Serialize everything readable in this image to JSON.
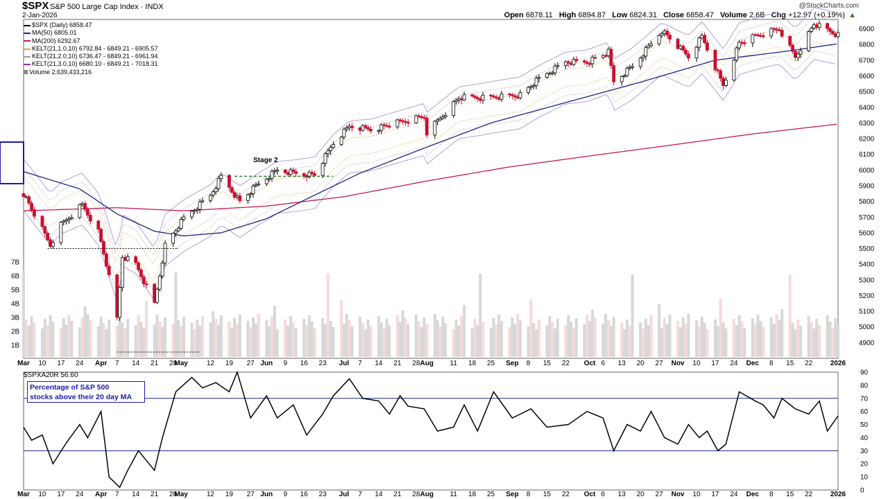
{
  "header": {
    "symbol": "$SPX",
    "name": "S&P 500 Large Cap Index",
    "exchange": "INDX",
    "date": "2-Jan-2026",
    "brand": "@StockCharts.com",
    "open_label": "Open",
    "open": "6878.11",
    "high_label": "High",
    "high": "6894.87",
    "low_label": "Low",
    "low": "6824.31",
    "close_label": "Close",
    "close": "6858.47",
    "volume_label": "Volume",
    "volume": "2.6B",
    "chg_label": "Chg",
    "chg": "+12.97 (+0.19%)"
  },
  "legend": [
    {
      "text": "$SPX (Daily) 6858.47",
      "color": "#000000"
    },
    {
      "text": "MA(50) 6805.01",
      "color": "#1a237e"
    },
    {
      "text": "MA(200) 6292.67",
      "color": "#c2185b"
    },
    {
      "text": "KELT(21,1.0,10) 6792.84 - 6849.21 - 6905.57",
      "color": "#e0a030"
    },
    {
      "text": "KELT(21,2.0,10) 6736.47 - 6849.21 - 6961.94",
      "color": "#999999"
    },
    {
      "text": "KELT(21,3.0,10) 6680.10 - 6849.21 - 7018.31",
      "color": "#9c27b0"
    },
    {
      "text": "Volume 2,639,433,216",
      "color": "#888888"
    }
  ],
  "annotation": "Stage 2",
  "breadth_panel": {
    "title": "$SPXA20R 56.60",
    "label_line1": "Percentage of S&P 500",
    "label_line2": "stocks above their 20 day MA"
  },
  "colors": {
    "up": "#000000",
    "down": "#c8102e",
    "ma50": "#1a237e",
    "ma200": "#c2185b",
    "kelt3": "#b39ddb",
    "kelt2": "#bdbdbd",
    "kelt1": "#e6c27a",
    "vol_up": "#d8d8d8",
    "vol_down": "#f6dada",
    "breadth": "#000000",
    "ref": "#1a237e"
  },
  "chart_data": [
    {
      "type": "candlestick",
      "title": "$SPX (Daily)",
      "ylim": [
        4800,
        6960
      ],
      "y_ticks": [
        4900,
        5000,
        5100,
        5200,
        5300,
        5400,
        5500,
        5600,
        5700,
        5800,
        5900,
        6000,
        6100,
        6200,
        6300,
        6400,
        6500,
        6600,
        6700,
        6800,
        6900
      ],
      "volume_ticks": [
        "1B",
        "2B",
        "3B",
        "4B",
        "5B",
        "6B",
        "7B"
      ],
      "x_ticks": [
        "Mar",
        "10",
        "17",
        "24",
        "Apr",
        "7",
        "14",
        "21",
        "28",
        "May",
        "12",
        "19",
        "27",
        "Jun",
        "9",
        "16",
        "23",
        "Jul",
        "7",
        "14",
        "21",
        "28",
        "Aug",
        "11",
        "18",
        "25",
        "Sep",
        "8",
        "15",
        "22",
        "Oct",
        "6",
        "13",
        "20",
        "27",
        "Nov",
        "10",
        "17",
        "24",
        "Dec",
        "8",
        "15",
        "22",
        "2026"
      ],
      "close_path": [
        [
          "2025-03-03",
          5850
        ],
        [
          "2025-03-10",
          5620
        ],
        [
          "2025-03-13",
          5520
        ],
        [
          "2025-03-17",
          5650
        ],
        [
          "2025-03-25",
          5780
        ],
        [
          "2025-03-31",
          5610
        ],
        [
          "2025-04-03",
          5400
        ],
        [
          "2025-04-07",
          5050
        ],
        [
          "2025-04-09",
          5450
        ],
        [
          "2025-04-14",
          5400
        ],
        [
          "2025-04-21",
          5150
        ],
        [
          "2025-04-25",
          5520
        ],
        [
          "2025-05-02",
          5690
        ],
        [
          "2025-05-12",
          5840
        ],
        [
          "2025-05-16",
          5960
        ],
        [
          "2025-05-23",
          5800
        ],
        [
          "2025-05-30",
          5910
        ],
        [
          "2025-06-06",
          6000
        ],
        [
          "2025-06-13",
          5980
        ],
        [
          "2025-06-20",
          5970
        ],
        [
          "2025-06-27",
          6170
        ],
        [
          "2025-07-03",
          6280
        ],
        [
          "2025-07-11",
          6260
        ],
        [
          "2025-07-21",
          6300
        ],
        [
          "2025-07-31",
          6340
        ],
        [
          "2025-08-01",
          6240
        ],
        [
          "2025-08-13",
          6460
        ],
        [
          "2025-08-22",
          6460
        ],
        [
          "2025-09-05",
          6480
        ],
        [
          "2025-09-12",
          6580
        ],
        [
          "2025-09-22",
          6690
        ],
        [
          "2025-09-30",
          6690
        ],
        [
          "2025-10-08",
          6750
        ],
        [
          "2025-10-10",
          6560
        ],
        [
          "2025-10-17",
          6660
        ],
        [
          "2025-10-28",
          6890
        ],
        [
          "2025-11-04",
          6770
        ],
        [
          "2025-11-07",
          6720
        ],
        [
          "2025-11-12",
          6850
        ],
        [
          "2025-11-20",
          6540
        ],
        [
          "2025-11-26",
          6810
        ],
        [
          "2025-12-05",
          6870
        ],
        [
          "2025-12-11",
          6900
        ],
        [
          "2025-12-17",
          6720
        ],
        [
          "2025-12-24",
          6930
        ],
        [
          "2026-01-02",
          6858
        ]
      ],
      "ma50_path": [
        [
          "2025-03-03",
          5990
        ],
        [
          "2025-03-24",
          5880
        ],
        [
          "2025-04-07",
          5720
        ],
        [
          "2025-04-21",
          5610
        ],
        [
          "2025-05-02",
          5580
        ],
        [
          "2025-05-16",
          5600
        ],
        [
          "2025-06-02",
          5690
        ],
        [
          "2025-06-20",
          5840
        ],
        [
          "2025-07-07",
          5980
        ],
        [
          "2025-07-28",
          6120
        ],
        [
          "2025-08-25",
          6300
        ],
        [
          "2025-09-22",
          6430
        ],
        [
          "2025-10-20",
          6560
        ],
        [
          "2025-11-17",
          6700
        ],
        [
          "2025-12-15",
          6760
        ],
        [
          "2026-01-02",
          6805
        ]
      ],
      "ma200_path": [
        [
          "2025-03-03",
          5740
        ],
        [
          "2025-04-07",
          5760
        ],
        [
          "2025-05-02",
          5740
        ],
        [
          "2025-06-02",
          5770
        ],
        [
          "2025-07-01",
          5830
        ],
        [
          "2025-08-01",
          5930
        ],
        [
          "2025-09-01",
          6020
        ],
        [
          "2025-10-01",
          6090
        ],
        [
          "2025-11-01",
          6160
        ],
        [
          "2025-12-01",
          6230
        ],
        [
          "2026-01-02",
          6293
        ]
      ],
      "last_bar": {
        "open": 6878.11,
        "high": 6894.87,
        "low": 6824.31,
        "close": 6858.47,
        "volume": 2639433216
      }
    },
    {
      "type": "line",
      "title": "$SPXA20R",
      "ylim": [
        0,
        90
      ],
      "y_ticks": [
        0,
        10,
        20,
        30,
        40,
        50,
        60,
        70,
        80,
        90
      ],
      "reference_lines": [
        30,
        70
      ],
      "series": [
        {
          "name": "$SPXA20R",
          "points": [
            [
              "2025-03-03",
              48
            ],
            [
              "2025-03-06",
              38
            ],
            [
              "2025-03-10",
              42
            ],
            [
              "2025-03-14",
              20
            ],
            [
              "2025-03-19",
              36
            ],
            [
              "2025-03-24",
              50
            ],
            [
              "2025-03-27",
              40
            ],
            [
              "2025-04-01",
              60
            ],
            [
              "2025-04-04",
              10
            ],
            [
              "2025-04-08",
              2
            ],
            [
              "2025-04-11",
              15
            ],
            [
              "2025-04-15",
              30
            ],
            [
              "2025-04-21",
              15
            ],
            [
              "2025-04-24",
              40
            ],
            [
              "2025-04-29",
              75
            ],
            [
              "2025-05-05",
              86
            ],
            [
              "2025-05-09",
              78
            ],
            [
              "2025-05-14",
              82
            ],
            [
              "2025-05-19",
              75
            ],
            [
              "2025-05-22",
              90
            ],
            [
              "2025-05-27",
              55
            ],
            [
              "2025-06-02",
              72
            ],
            [
              "2025-06-06",
              55
            ],
            [
              "2025-06-12",
              65
            ],
            [
              "2025-06-17",
              42
            ],
            [
              "2025-06-23",
              58
            ],
            [
              "2025-06-27",
              72
            ],
            [
              "2025-07-03",
              85
            ],
            [
              "2025-07-08",
              70
            ],
            [
              "2025-07-14",
              68
            ],
            [
              "2025-07-18",
              58
            ],
            [
              "2025-07-22",
              72
            ],
            [
              "2025-07-25",
              64
            ],
            [
              "2025-07-31",
              62
            ],
            [
              "2025-08-05",
              45
            ],
            [
              "2025-08-11",
              48
            ],
            [
              "2025-08-15",
              65
            ],
            [
              "2025-08-20",
              45
            ],
            [
              "2025-08-26",
              75
            ],
            [
              "2025-09-02",
              55
            ],
            [
              "2025-09-09",
              62
            ],
            [
              "2025-09-15",
              48
            ],
            [
              "2025-09-23",
              50
            ],
            [
              "2025-09-30",
              60
            ],
            [
              "2025-10-06",
              55
            ],
            [
              "2025-10-10",
              30
            ],
            [
              "2025-10-15",
              50
            ],
            [
              "2025-10-20",
              45
            ],
            [
              "2025-10-24",
              60
            ],
            [
              "2025-10-29",
              40
            ],
            [
              "2025-11-03",
              35
            ],
            [
              "2025-11-07",
              50
            ],
            [
              "2025-11-11",
              40
            ],
            [
              "2025-11-14",
              45
            ],
            [
              "2025-11-18",
              30
            ],
            [
              "2025-11-21",
              35
            ],
            [
              "2025-11-26",
              75
            ],
            [
              "2025-12-02",
              68
            ],
            [
              "2025-12-05",
              65
            ],
            [
              "2025-12-09",
              55
            ],
            [
              "2025-12-12",
              70
            ],
            [
              "2025-12-17",
              62
            ],
            [
              "2025-12-22",
              58
            ],
            [
              "2025-12-26",
              68
            ],
            [
              "2025-12-29",
              45
            ],
            [
              "2026-01-02",
              56.6
            ]
          ]
        }
      ]
    }
  ]
}
